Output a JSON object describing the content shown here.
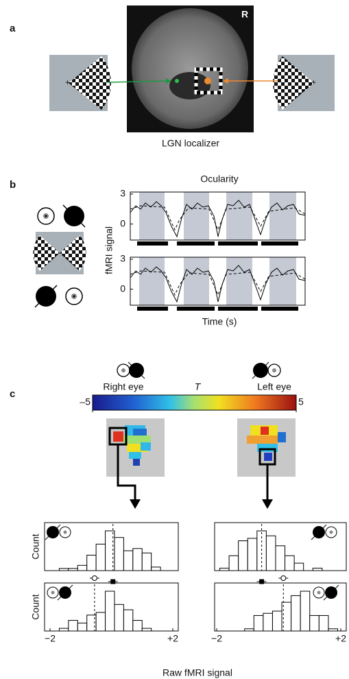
{
  "panels": {
    "a": {
      "label": "a",
      "hemisphere": "R",
      "caption": "LGN localizer"
    },
    "b": {
      "label": "b",
      "title": "Ocularity",
      "y_label": "fMRI signal",
      "x_label": "Time (s)",
      "ylim": [
        -1.6,
        3.2
      ],
      "yticks": [
        0,
        3
      ]
    },
    "c": {
      "label": "c",
      "right_eye": "Right eye",
      "t_label": "T",
      "left_eye": "Left eye",
      "colorbar_ticks": [
        {
          "value": -5,
          "label": "–5"
        },
        5
      ],
      "y_label": "Count",
      "x_label": "Raw fMRI signal",
      "xticks": [
        {
          "value": -2,
          "label": "−2"
        },
        {
          "value": 2,
          "label": "+2"
        }
      ],
      "histograms": [
        {
          "bins": [
            -1.7,
            -1.4,
            -1.1,
            -0.8,
            -0.5,
            -0.2,
            0.1,
            0.4,
            0.7,
            1.0,
            1.3,
            1.6
          ],
          "counts": [
            0.5,
            0.5,
            1.2,
            3.5,
            6,
            9,
            7.5,
            4.5,
            5,
            4,
            0.8
          ],
          "mean": 0.05
        },
        {
          "bins": [
            -1.7,
            -1.4,
            -1.1,
            -0.8,
            -0.5,
            -0.2,
            0.1,
            0.4,
            0.7,
            1.0,
            1.3
          ],
          "counts": [
            0.5,
            2,
            1.5,
            3,
            3.5,
            7.5,
            5,
            4,
            2,
            0.5
          ],
          "mean": -0.55
        },
        {
          "bins": [
            -1.9,
            -1.6,
            -1.3,
            -1.0,
            -0.7,
            -0.4,
            -0.1,
            0.2,
            0.5,
            0.8,
            1.1,
            1.4
          ],
          "counts": [
            0.5,
            3,
            6,
            6.5,
            8,
            7,
            5,
            3,
            1.5,
            0,
            0.5
          ],
          "mean": -0.55
        },
        {
          "bins": [
            -1.1,
            -0.8,
            -0.5,
            -0.2,
            0.1,
            0.4,
            0.7,
            1.0,
            1.3,
            1.6,
            1.9
          ],
          "counts": [
            0.5,
            3.5,
            4,
            4.5,
            6.5,
            8,
            9,
            3.5,
            3.5,
            0.5
          ],
          "mean": 0.15
        }
      ]
    }
  }
}
